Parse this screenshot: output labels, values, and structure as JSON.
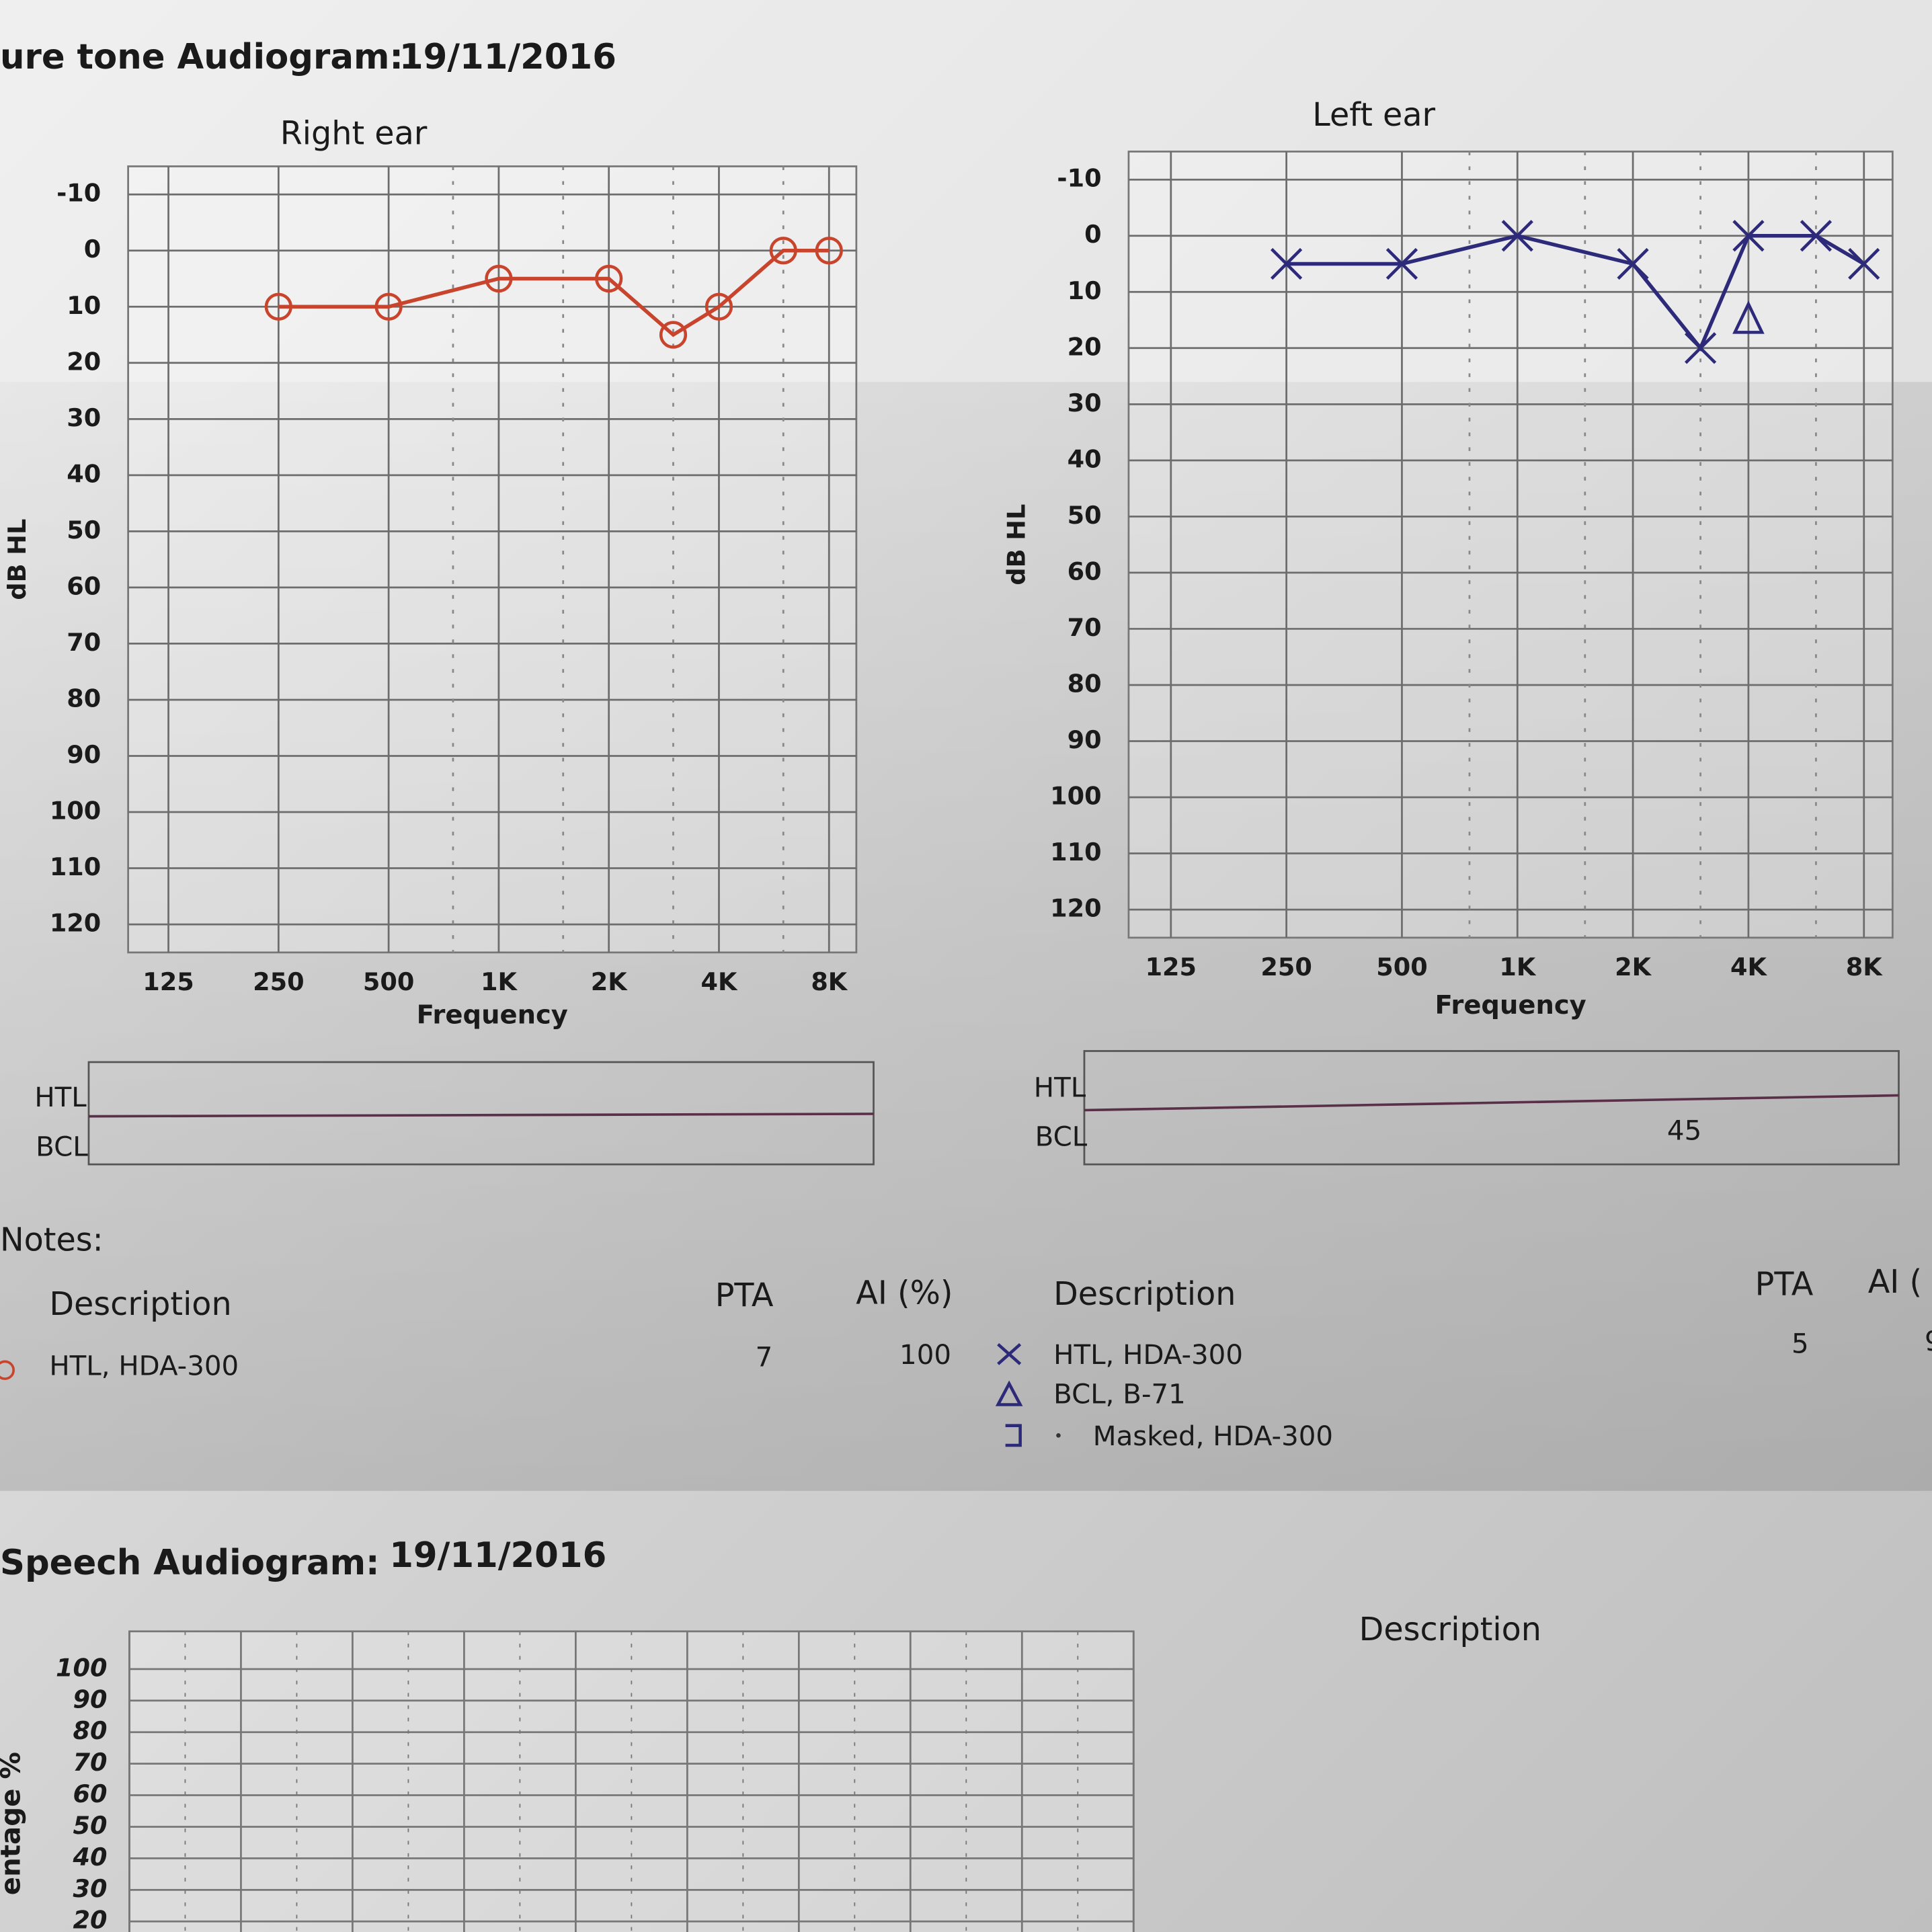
{
  "header": {
    "title": "ure tone Audiogram:",
    "date": "19/11/2016"
  },
  "chart_data": [
    {
      "type": "line",
      "title": "Right ear",
      "x_label": "Frequency",
      "y_label": "dB HL",
      "log_x": true,
      "y_reversed": true,
      "grid": true,
      "xlim": [
        97,
        9500
      ],
      "xticks": [
        125,
        250,
        500,
        {
          "value": 1000,
          "label": "1K"
        },
        {
          "value": 2000,
          "label": "2K"
        },
        {
          "value": 4000,
          "label": "4K"
        },
        {
          "value": 8000,
          "label": "8K"
        }
      ],
      "x_minor_ticks": [
        750,
        1500,
        3000,
        6000
      ],
      "ylim": [
        -15,
        125
      ],
      "yticks": [
        -10,
        0,
        10,
        20,
        30,
        40,
        50,
        60,
        70,
        80,
        90,
        100,
        110,
        120
      ],
      "series": [
        {
          "color": "#c8442c",
          "marker": "circle",
          "line": true,
          "x": [
            250,
            500,
            1000,
            2000,
            3000,
            4000,
            6000,
            8000
          ],
          "values": [
            10,
            10,
            5,
            5,
            15,
            10,
            0,
            0
          ]
        }
      ]
    },
    {
      "type": "line",
      "title": "Left  ear",
      "x_label": "Frequency",
      "y_label": "dB HL",
      "log_x": true,
      "y_reversed": true,
      "grid": true,
      "xlim": [
        97,
        9500
      ],
      "xticks": [
        125,
        250,
        500,
        {
          "value": 1000,
          "label": "1K"
        },
        {
          "value": 2000,
          "label": "2K"
        },
        {
          "value": 4000,
          "label": "4K"
        },
        {
          "value": 8000,
          "label": "8K"
        }
      ],
      "x_minor_ticks": [
        750,
        1500,
        3000,
        6000
      ],
      "ylim": [
        -15,
        125
      ],
      "yticks": [
        -10,
        0,
        10,
        20,
        30,
        40,
        50,
        60,
        70,
        80,
        90,
        100,
        110,
        120
      ],
      "series": [
        {
          "color": "#2e2a7a",
          "marker": "x",
          "line": true,
          "x": [
            250,
            500,
            1000,
            2000,
            3000,
            4000,
            6000,
            8000
          ],
          "values": [
            5,
            5,
            0,
            5,
            20,
            0,
            0,
            5
          ]
        },
        {
          "color": "#2e2a7a",
          "marker": "triangle",
          "line": false,
          "x": [
            4000
          ],
          "values": [
            15
          ]
        }
      ]
    }
  ],
  "level_boxes": [
    {
      "rows": [
        {
          "label": "HTL"
        },
        {
          "label": "BCL"
        }
      ]
    },
    {
      "rows": [
        {
          "label": "HTL"
        },
        {
          "label": "BCL",
          "value": 45
        }
      ]
    }
  ],
  "notes": {
    "title": "Notes:",
    "right": {
      "headers": [
        "Description",
        "PTA",
        "AI (%)"
      ],
      "rows": [
        [
          "HTL, HDA-300",
          7,
          100
        ]
      ]
    },
    "left": {
      "headers": [
        "Description",
        "PTA",
        "AI ("
      ],
      "rows": [
        [
          "HTL, HDA-300",
          5,
          9
        ],
        [
          "BCL, B-71"
        ],
        [
          "Masked, HDA-300"
        ]
      ]
    }
  },
  "speech": {
    "title": "Speech Audiogram:",
    "date": "19/11/2016",
    "y_label": "entage %",
    "ylim": [
      10,
      110
    ],
    "yticks": [
      100,
      90,
      80,
      70,
      60,
      50,
      40,
      30,
      20
    ],
    "description": "Description"
  }
}
